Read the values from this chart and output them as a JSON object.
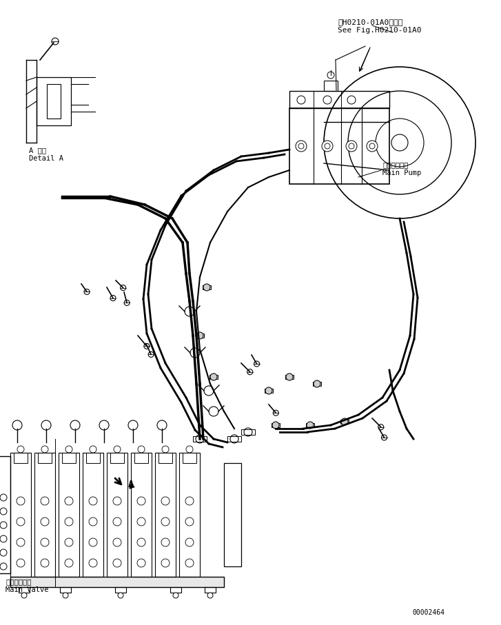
{
  "bg_color": "#ffffff",
  "line_color": "#000000",
  "title_ref": "第H0210-01A0図参照",
  "title_ref2": "See Fig.H0210-01A0",
  "label_main_pump_jp": "メインポンプ",
  "label_main_pump_en": "Main Pump",
  "label_main_valve_jp": "メインバルブ",
  "label_main_valve_en": "Main Valve",
  "label_detail_jp": "A 詳細",
  "label_detail_en": "Detail A",
  "serial_number": "00002464",
  "fig_width": 7.27,
  "fig_height": 9.07,
  "dpi": 100
}
